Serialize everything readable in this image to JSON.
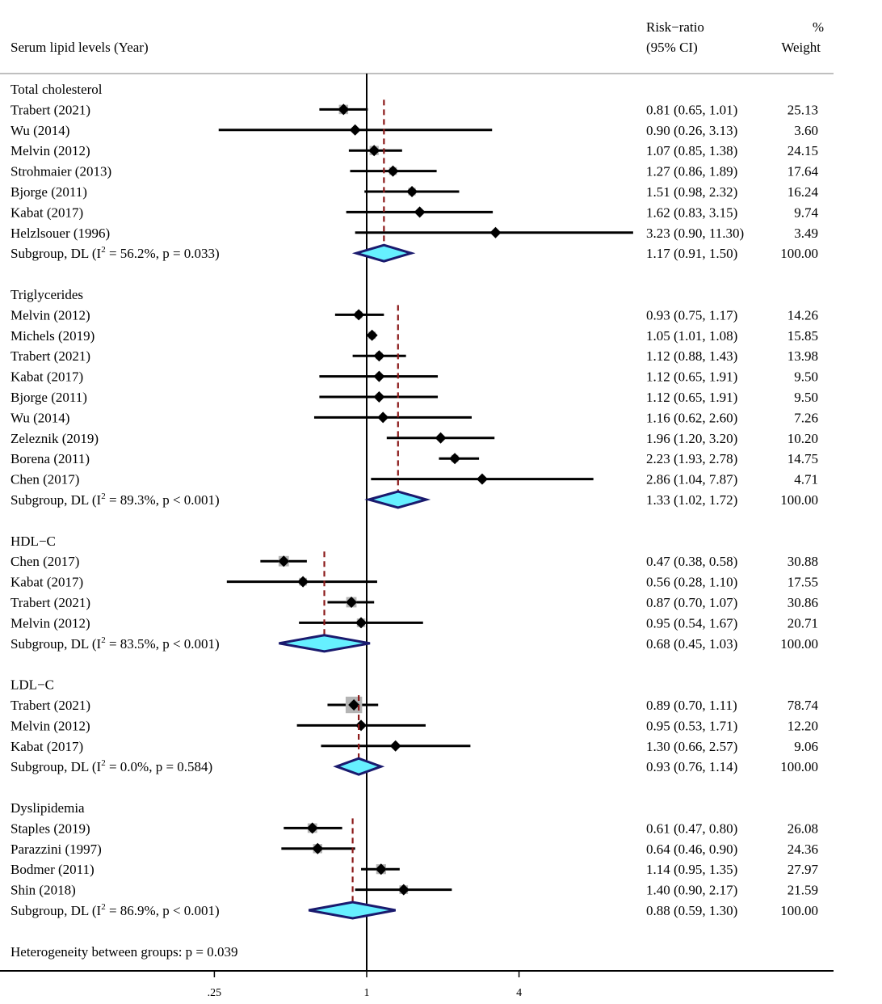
{
  "chart_data": {
    "type": "forest",
    "title": "",
    "xscale": "log2",
    "xlim": [
      0.11,
      25
    ],
    "xticks": [
      {
        "value": 0.25,
        "label": ".25"
      },
      {
        "value": 1,
        "label": "1"
      },
      {
        "value": 4,
        "label": "4"
      }
    ],
    "headers": {
      "study": "Serum lipid levels (Year)",
      "rr_line1": "Risk−ratio",
      "rr_line2": "(95% CI)",
      "weight_line1": "%",
      "weight_line2": "Weight"
    },
    "groups": [
      {
        "name": "Total cholesterol",
        "studies": [
          {
            "label": "Trabert  (2021)",
            "rr": 0.81,
            "lo": 0.65,
            "hi": 1.01,
            "ci_text": "0.81 (0.65, 1.01)",
            "weight": "25.13"
          },
          {
            "label": "Wu (2014)",
            "rr": 0.9,
            "lo": 0.26,
            "hi": 3.13,
            "ci_text": "0.90 (0.26, 3.13)",
            "weight": "3.60"
          },
          {
            "label": "Melvin (2012)",
            "rr": 1.07,
            "lo": 0.85,
            "hi": 1.38,
            "ci_text": "1.07 (0.85, 1.38)",
            "weight": "24.15"
          },
          {
            "label": "Strohmaier (2013)",
            "rr": 1.27,
            "lo": 0.86,
            "hi": 1.89,
            "ci_text": "1.27 (0.86, 1.89)",
            "weight": "17.64"
          },
          {
            "label": "Bjorge (2011)",
            "rr": 1.51,
            "lo": 0.98,
            "hi": 2.32,
            "ci_text": "1.51 (0.98, 2.32)",
            "weight": "16.24"
          },
          {
            "label": "Kabat (2017)",
            "rr": 1.62,
            "lo": 0.83,
            "hi": 3.15,
            "ci_text": "1.62 (0.83, 3.15)",
            "weight": "9.74"
          },
          {
            "label": "Helzlsouer (1996)",
            "rr": 3.23,
            "lo": 0.9,
            "hi": 11.3,
            "ci_text": "3.23 (0.90, 11.30)",
            "weight": "3.49"
          }
        ],
        "subgroup": {
          "prefix": "Subgroup, DL (I",
          "sup": "2",
          "suffix": " = 56.2%, p = 0.033)",
          "rr": 1.17,
          "lo": 0.91,
          "hi": 1.5,
          "ci_text": "1.17 (0.91, 1.50)",
          "weight": "100.00"
        }
      },
      {
        "name": "Triglycerides",
        "studies": [
          {
            "label": "Melvin (2012)",
            "rr": 0.93,
            "lo": 0.75,
            "hi": 1.17,
            "ci_text": "0.93 (0.75, 1.17)",
            "weight": "14.26"
          },
          {
            "label": "Michels (2019)",
            "rr": 1.05,
            "lo": 1.01,
            "hi": 1.08,
            "ci_text": "1.05 (1.01, 1.08)",
            "weight": "15.85"
          },
          {
            "label": "Trabert  (2021)",
            "rr": 1.12,
            "lo": 0.88,
            "hi": 1.43,
            "ci_text": "1.12 (0.88, 1.43)",
            "weight": "13.98"
          },
          {
            "label": "Kabat (2017)",
            "rr": 1.12,
            "lo": 0.65,
            "hi": 1.91,
            "ci_text": "1.12 (0.65, 1.91)",
            "weight": "9.50"
          },
          {
            "label": "Bjorge (2011)",
            "rr": 1.12,
            "lo": 0.65,
            "hi": 1.91,
            "ci_text": "1.12 (0.65, 1.91)",
            "weight": "9.50"
          },
          {
            "label": "Wu (2014)",
            "rr": 1.16,
            "lo": 0.62,
            "hi": 2.6,
            "ci_text": "1.16 (0.62, 2.60)",
            "weight": "7.26"
          },
          {
            "label": "Zeleznik  (2019)",
            "rr": 1.96,
            "lo": 1.2,
            "hi": 3.2,
            "ci_text": "1.96 (1.20, 3.20)",
            "weight": "10.20"
          },
          {
            "label": "Borena (2011)",
            "rr": 2.23,
            "lo": 1.93,
            "hi": 2.78,
            "ci_text": "2.23 (1.93, 2.78)",
            "weight": "14.75"
          },
          {
            "label": "Chen (2017)",
            "rr": 2.86,
            "lo": 1.04,
            "hi": 7.87,
            "ci_text": "2.86 (1.04, 7.87)",
            "weight": "4.71"
          }
        ],
        "subgroup": {
          "prefix": "Subgroup, DL (I",
          "sup": "2",
          "suffix": " = 89.3%, p < 0.001)",
          "rr": 1.33,
          "lo": 1.02,
          "hi": 1.72,
          "ci_text": "1.33 (1.02, 1.72)",
          "weight": "100.00"
        }
      },
      {
        "name": "HDL−C",
        "studies": [
          {
            "label": "Chen (2017)",
            "rr": 0.47,
            "lo": 0.38,
            "hi": 0.58,
            "ci_text": "0.47 (0.38, 0.58)",
            "weight": "30.88"
          },
          {
            "label": "Kabat (2017)",
            "rr": 0.56,
            "lo": 0.28,
            "hi": 1.1,
            "ci_text": "0.56 (0.28, 1.10)",
            "weight": "17.55"
          },
          {
            "label": "Trabert  (2021)",
            "rr": 0.87,
            "lo": 0.7,
            "hi": 1.07,
            "ci_text": "0.87 (0.70, 1.07)",
            "weight": "30.86"
          },
          {
            "label": "Melvin (2012)",
            "rr": 0.95,
            "lo": 0.54,
            "hi": 1.67,
            "ci_text": "0.95 (0.54, 1.67)",
            "weight": "20.71"
          }
        ],
        "subgroup": {
          "prefix": "Subgroup, DL (I",
          "sup": "2",
          "suffix": " = 83.5%, p < 0.001)",
          "rr": 0.68,
          "lo": 0.45,
          "hi": 1.03,
          "ci_text": "0.68 (0.45, 1.03)",
          "weight": "100.00"
        }
      },
      {
        "name": "LDL−C",
        "studies": [
          {
            "label": "Trabert  (2021)",
            "rr": 0.89,
            "lo": 0.7,
            "hi": 1.11,
            "ci_text": "0.89 (0.70, 1.11)",
            "weight": "78.74"
          },
          {
            "label": "Melvin (2012)",
            "rr": 0.95,
            "lo": 0.53,
            "hi": 1.71,
            "ci_text": "0.95 (0.53, 1.71)",
            "weight": "12.20"
          },
          {
            "label": "Kabat (2017)",
            "rr": 1.3,
            "lo": 0.66,
            "hi": 2.57,
            "ci_text": "1.30 (0.66, 2.57)",
            "weight": "9.06"
          }
        ],
        "subgroup": {
          "prefix": "Subgroup, DL (I",
          "sup": "2",
          "suffix": " = 0.0%, p = 0.584)",
          "rr": 0.93,
          "lo": 0.76,
          "hi": 1.14,
          "ci_text": "0.93 (0.76, 1.14)",
          "weight": "100.00"
        }
      },
      {
        "name": "Dyslipidemia",
        "studies": [
          {
            "label": "Staples (2019)",
            "rr": 0.61,
            "lo": 0.47,
            "hi": 0.8,
            "ci_text": "0.61 (0.47, 0.80)",
            "weight": "26.08"
          },
          {
            "label": "Parazzini (1997)",
            "rr": 0.64,
            "lo": 0.46,
            "hi": 0.9,
            "ci_text": "0.64 (0.46, 0.90)",
            "weight": "24.36"
          },
          {
            "label": "Bodmer (2011)",
            "rr": 1.14,
            "lo": 0.95,
            "hi": 1.35,
            "ci_text": "1.14 (0.95, 1.35)",
            "weight": "27.97"
          },
          {
            "label": "Shin (2018)",
            "rr": 1.4,
            "lo": 0.9,
            "hi": 2.17,
            "ci_text": "1.40 (0.90, 2.17)",
            "weight": "21.59"
          }
        ],
        "subgroup": {
          "prefix": "Subgroup, DL (I",
          "sup": "2",
          "suffix": " = 86.9%, p < 0.001)",
          "rr": 0.88,
          "lo": 0.59,
          "hi": 1.3,
          "ci_text": "0.88 (0.59, 1.30)",
          "weight": "100.00"
        }
      }
    ],
    "footer": "Heterogeneity between groups: p = 0.039",
    "colors": {
      "marker": "#000000",
      "ci_line": "#000000",
      "reference_line": "#000000",
      "pooled_line": "#8b1a1a",
      "diamond_fill": "#66f0ff",
      "diamond_stroke": "#1a1a6e",
      "weight_box": "#b4b4b4",
      "rule": "#aaaaaa"
    }
  }
}
